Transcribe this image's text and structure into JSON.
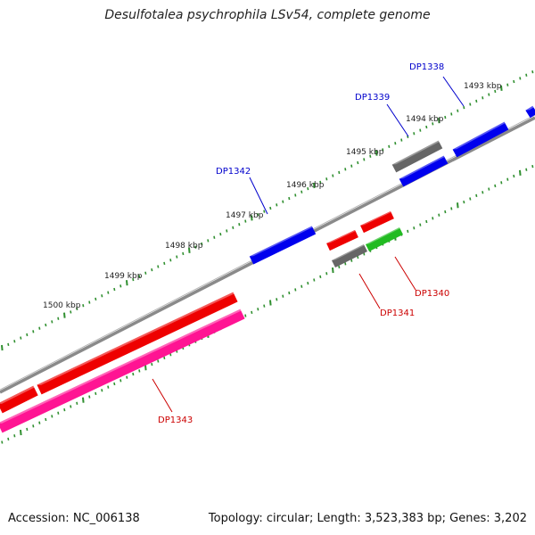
{
  "title": "Desulfotalea psychrophila LSv54, complete genome",
  "footer": {
    "accession": "Accession: NC_006138",
    "summary": "Topology: circular; Length: 3,523,383 bp; Genes: 3,202"
  },
  "colors": {
    "backbone": "#8a8a8a",
    "tick": "#2f8f2f",
    "label_forward": "#0000cc",
    "label_reverse": "#cc0000"
  },
  "tick_labels": [
    "1493 kbp",
    "1494 kbp",
    "1495 kbp",
    "1496 kbp",
    "1497 kbp",
    "1498 kbp",
    "1499 kbp",
    "1500 kbp"
  ],
  "genes": [
    {
      "label": "DP1338",
      "strand": "forward",
      "color": "#0000ee"
    },
    {
      "label": "DP1339",
      "strand": "forward",
      "color": "#0000ee"
    },
    {
      "label": "DP1342",
      "strand": "forward",
      "color": "#0000ee"
    },
    {
      "label": "DP1340",
      "strand": "reverse",
      "color": "#ee0000"
    },
    {
      "label": "DP1341",
      "strand": "reverse",
      "color": "#ee0000"
    },
    {
      "label": "DP1343",
      "strand": "reverse",
      "color": "#ee0000"
    }
  ],
  "unlabeled_features": [
    {
      "name": "grey-feature-forward",
      "color": "#666666"
    },
    {
      "name": "grey-feature-reverse",
      "color": "#666666"
    },
    {
      "name": "green-feature",
      "color": "#22bb22"
    },
    {
      "name": "pink-feature",
      "color": "#ff1493"
    },
    {
      "name": "red-feature-left",
      "color": "#ee0000"
    }
  ]
}
